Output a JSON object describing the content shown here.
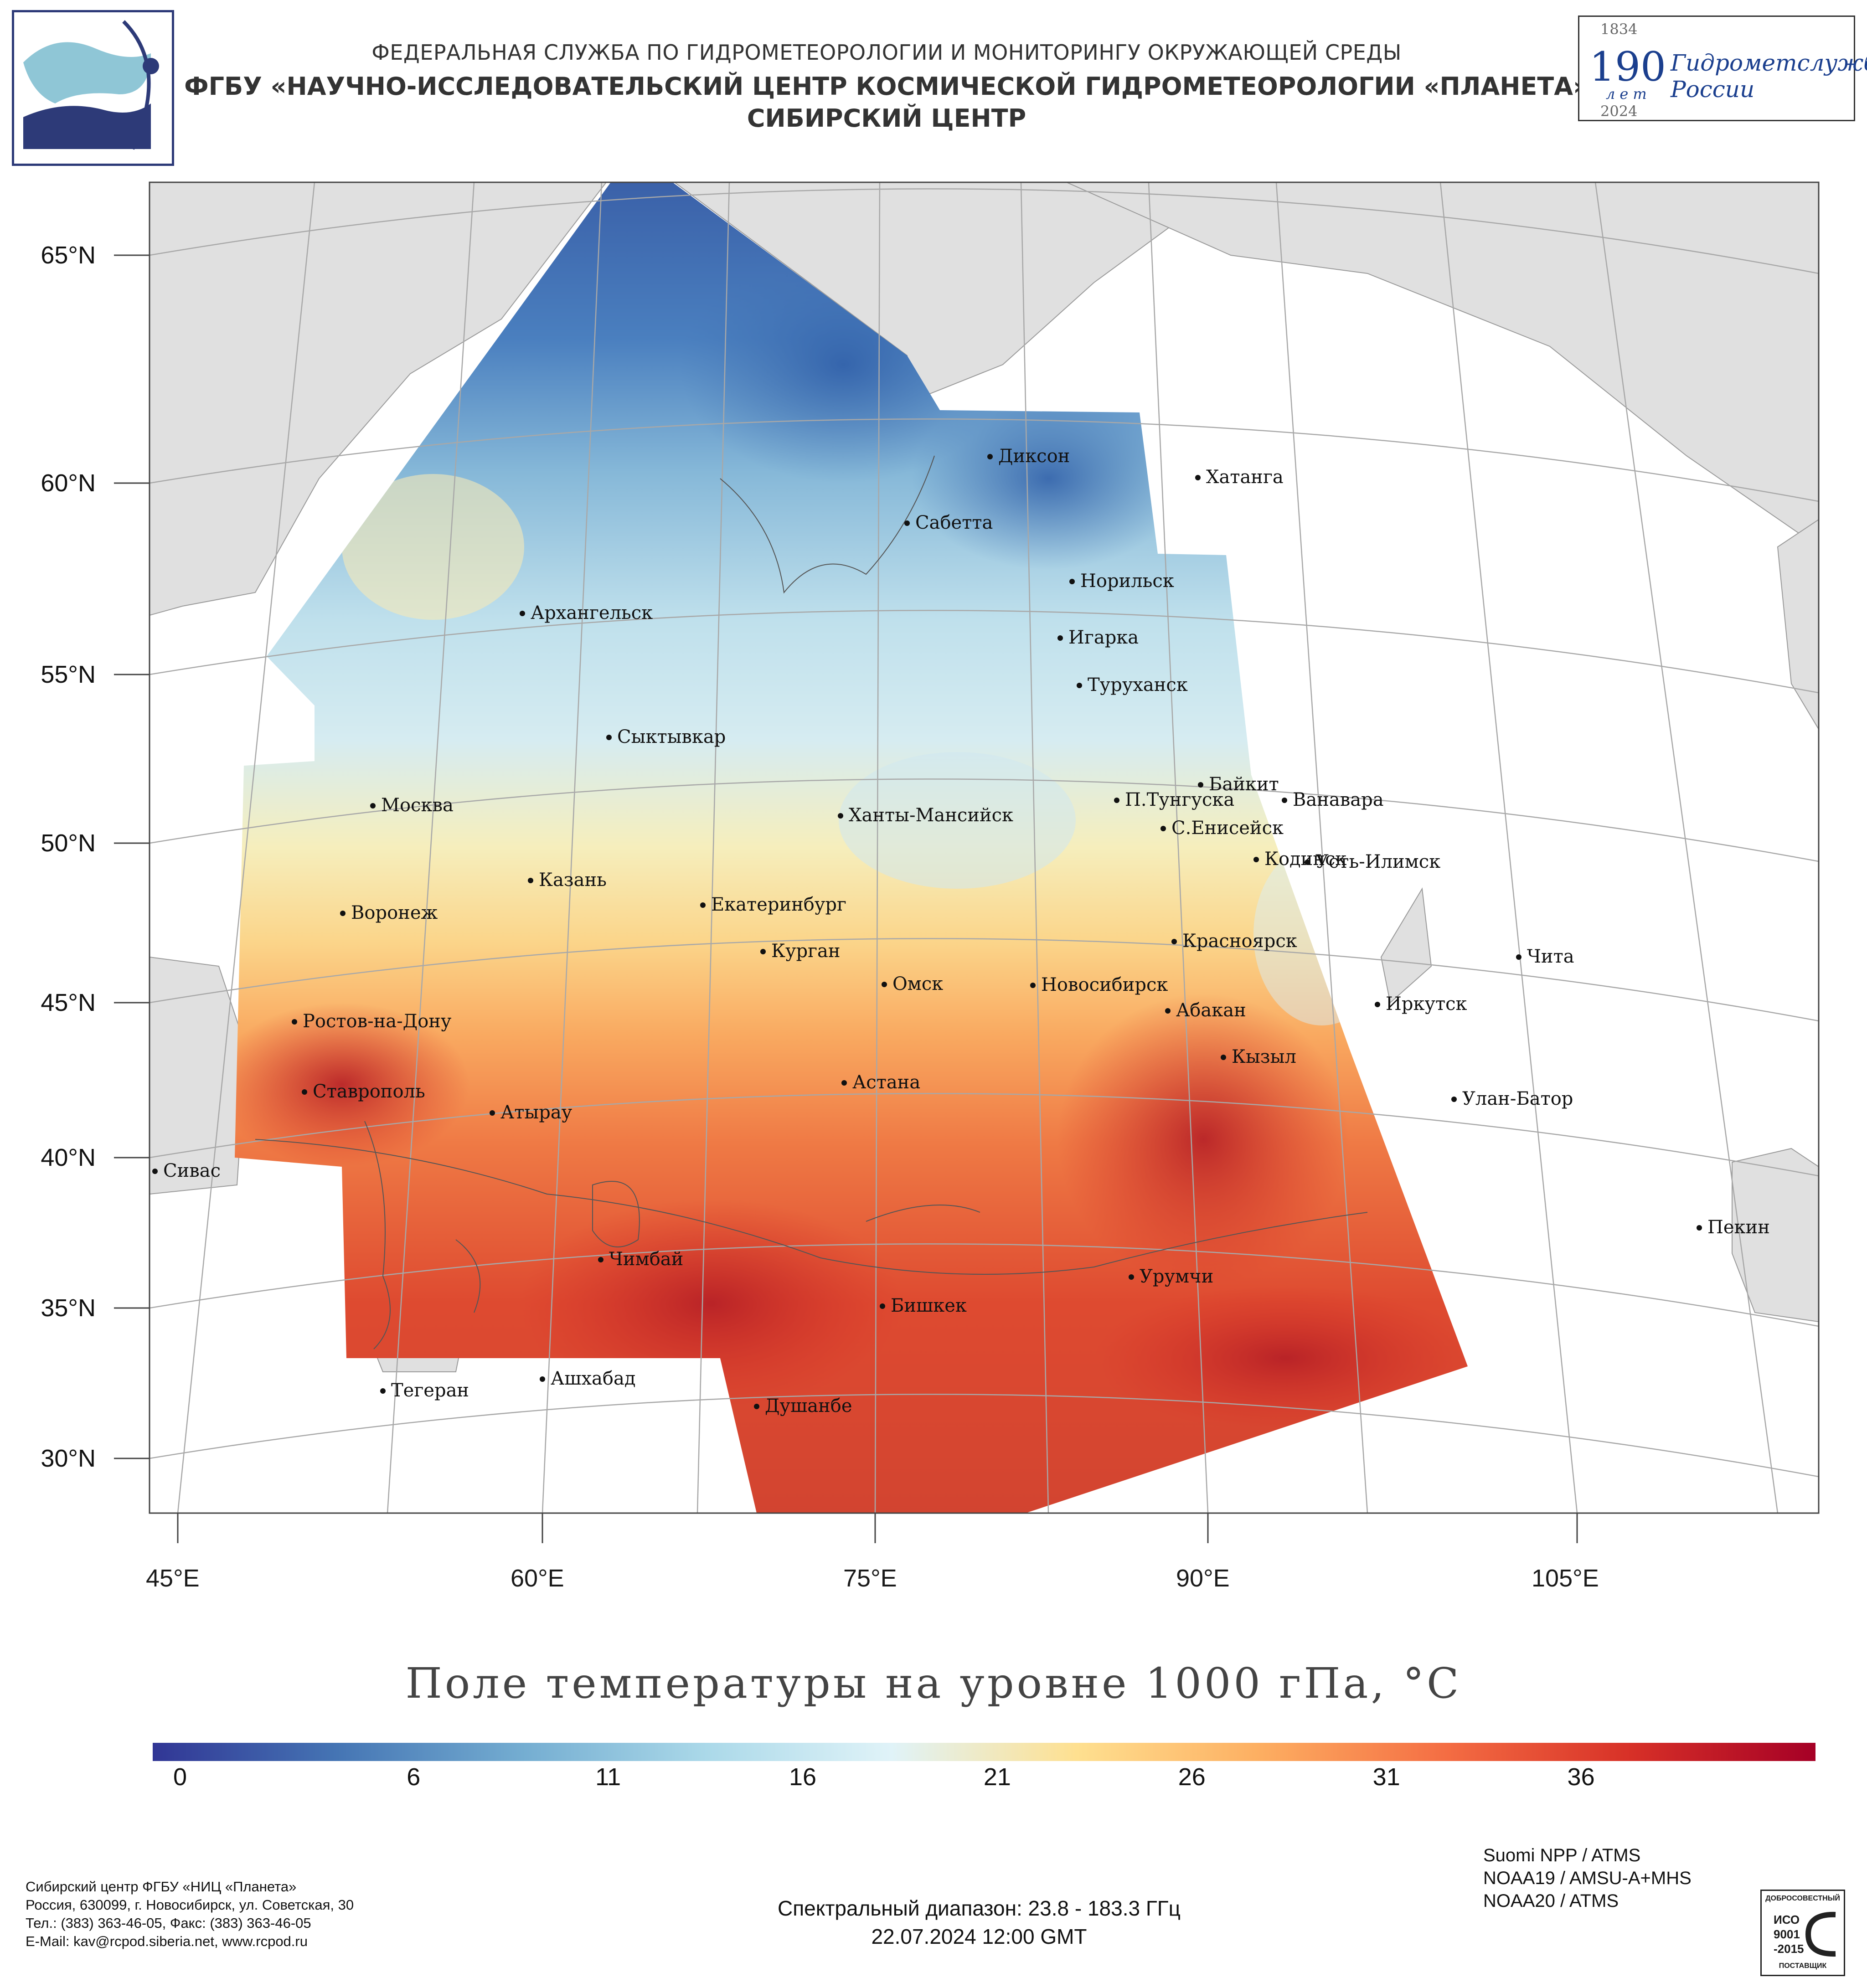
{
  "header": {
    "line1": "ФЕДЕРАЛЬНАЯ СЛУЖБА ПО ГИДРОМЕТЕОРОЛОГИИ И МОНИТОРИНГУ ОКРУЖАЮЩЕЙ СРЕДЫ",
    "line2": "ФГБУ «НАУЧНО-ИССЛЕДОВАТЕЛЬСКИЙ ЦЕНТР КОСМИЧЕСКОЙ ГИДРОМЕТЕОРОЛОГИИ «ПЛАНЕТА»",
    "line3": "СИБИРСКИЙ ЦЕНТР",
    "anniversary": {
      "year_start": "1834",
      "number": "190",
      "number_caption": "лет",
      "text_line1": "Гидрометслужбе",
      "text_line2": "России",
      "year_end": "2024"
    },
    "logo_icon": "planeta-logo-icon"
  },
  "map": {
    "title": "Поле температуры на уровне 1000 гПа, °C",
    "latitude_labels": [
      "65°N",
      "60°N",
      "55°N",
      "50°N",
      "45°N",
      "40°N",
      "35°N",
      "30°N"
    ],
    "longitude_labels": [
      "45°E",
      "60°E",
      "75°E",
      "90°E",
      "105°E"
    ],
    "land_color": "#e0e0e0",
    "ocean_color": "#ffffff",
    "cities": [
      {
        "name": "Диксон"
      },
      {
        "name": "Хатанга"
      },
      {
        "name": "Сабетта"
      },
      {
        "name": "Норильск"
      },
      {
        "name": "Игарка"
      },
      {
        "name": "Архангельск"
      },
      {
        "name": "Туруханск"
      },
      {
        "name": "Сыктывкар"
      },
      {
        "name": "Байкит"
      },
      {
        "name": "П.Тунгуска"
      },
      {
        "name": "Ванавара"
      },
      {
        "name": "Москва"
      },
      {
        "name": "Ханты-Мансийск"
      },
      {
        "name": "С.Енисейск"
      },
      {
        "name": "Кодинск"
      },
      {
        "name": "Усть-Илимск"
      },
      {
        "name": "Казань"
      },
      {
        "name": "Екатеринбург"
      },
      {
        "name": "Воронеж"
      },
      {
        "name": "Красноярск"
      },
      {
        "name": "Курган"
      },
      {
        "name": "Чита"
      },
      {
        "name": "Омск"
      },
      {
        "name": "Новосибирск"
      },
      {
        "name": "Иркутск"
      },
      {
        "name": "Абакан"
      },
      {
        "name": "Ростов-на-Дону"
      },
      {
        "name": "Кызыл"
      },
      {
        "name": "Астана"
      },
      {
        "name": "Улан-Батор"
      },
      {
        "name": "Ставрополь"
      },
      {
        "name": "Атырау"
      },
      {
        "name": "Сивас"
      },
      {
        "name": "Пекин"
      },
      {
        "name": "Чимбай"
      },
      {
        "name": "Урумчи"
      },
      {
        "name": "Бишкек"
      },
      {
        "name": "Ашхабад"
      },
      {
        "name": "Тегеран"
      },
      {
        "name": "Душанбе"
      }
    ]
  },
  "colorbar": {
    "ticks": [
      "0",
      "6",
      "11",
      "16",
      "21",
      "26",
      "31",
      "36"
    ],
    "min": 0,
    "max": 40,
    "stops": [
      "#313695",
      "#4575b4",
      "#74add1",
      "#abd9e9",
      "#e0f3f8",
      "#fee090",
      "#fdae61",
      "#f46d43",
      "#d73027",
      "#a50026"
    ]
  },
  "footer": {
    "address_lines": [
      "Сибирский центр ФГБУ «НИЦ «Планета»",
      "Россия, 630099, г. Новосибирск, ул. Советская, 30",
      "Тел.: (383) 363-46-05, Факс: (383) 363-46-05",
      "E-Mail: kav@rcpod.siberia.net, www.rcpod.ru"
    ],
    "spectral": "Спектральный диапазон: 23.8 - 183.3 ГГц",
    "datetime": "22.07.2024 12:00 GMT",
    "satellites": [
      "Suomi NPP / ATMS",
      "NOAA19 / AMSU-A+MHS",
      "NOAA20 / ATMS"
    ],
    "iso_badge": {
      "top": "ДОБРОСОВЕСТНЫЙ",
      "line1": "ИСО",
      "line2": "9001",
      "line3": "-2015",
      "bottom": "ПОСТАВЩИК"
    }
  }
}
